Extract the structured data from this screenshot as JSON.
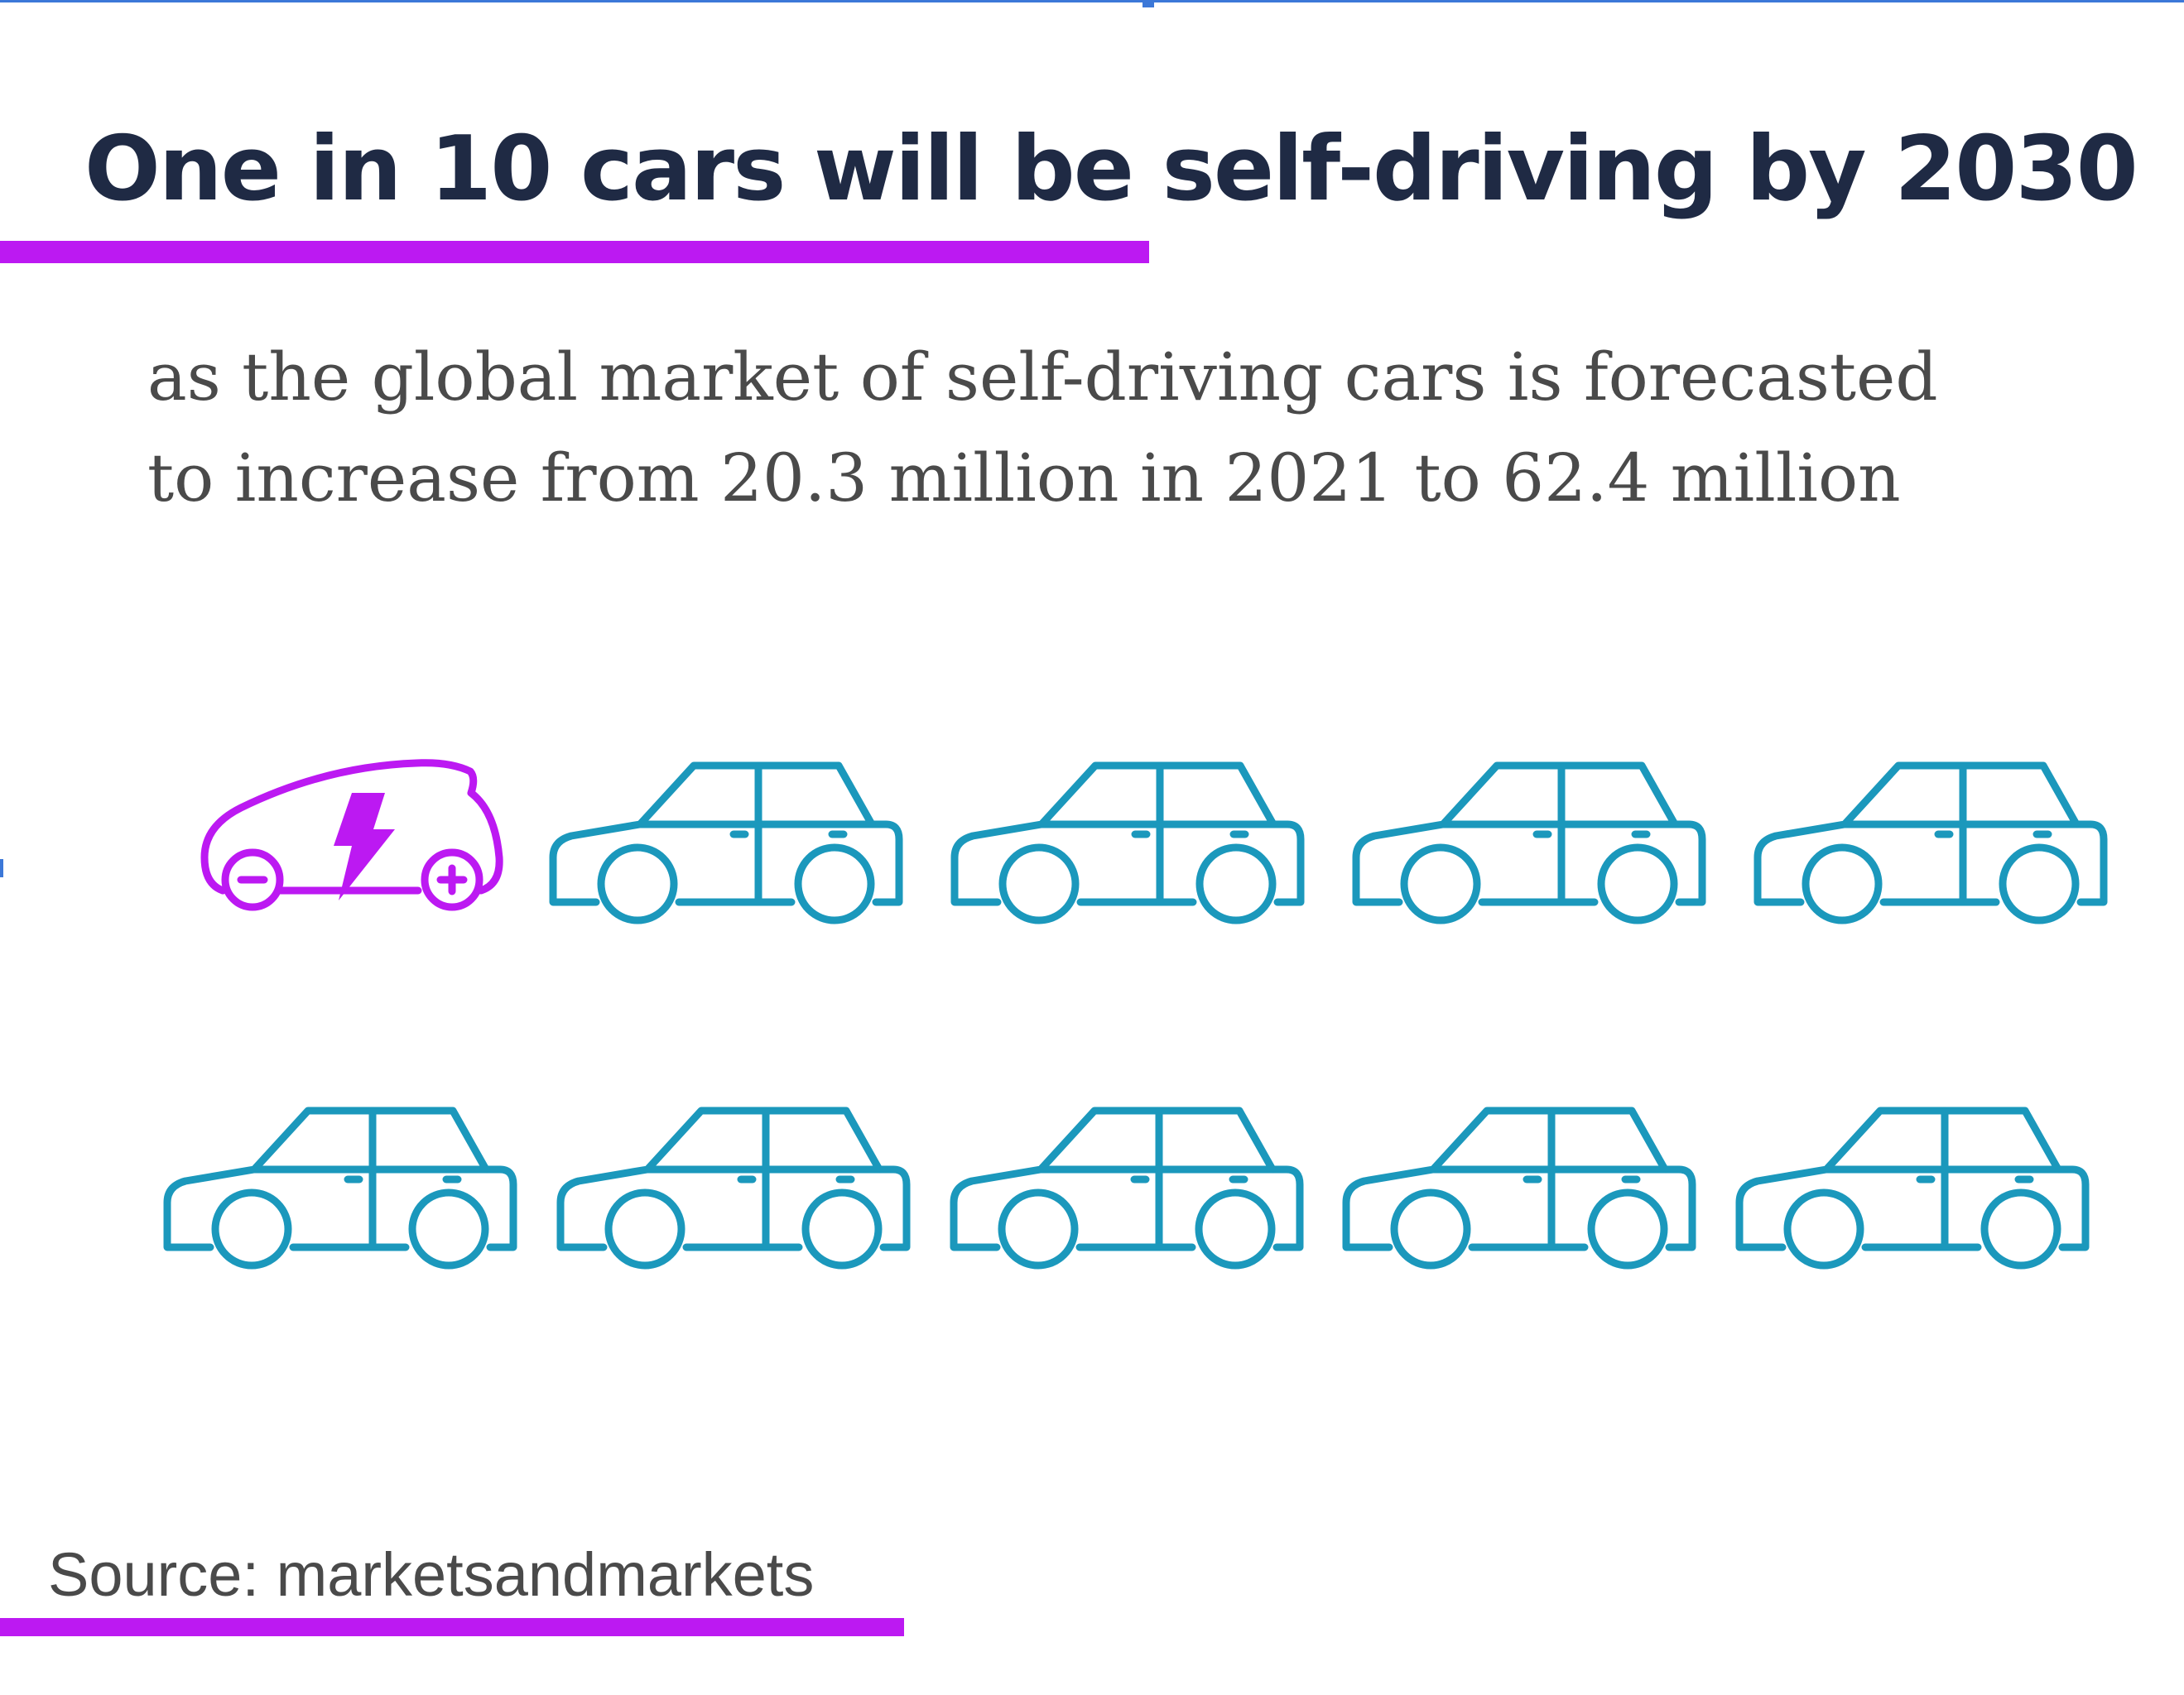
{
  "title": "One in 10 cars will be self-driving by 2030",
  "subtitle": "as the global market of self-driving cars is forecasted to increase from 20.3 million in 2021 to 62.4 million",
  "source": "Source: marketsandmarkets",
  "colors": {
    "accent": "#bc19f2",
    "title_text": "#1f2a44",
    "body_text": "#4a4a4a",
    "car_regular": "#1b98bc",
    "car_self_driving": "#bc19f2"
  },
  "chart_data": {
    "type": "pictogram",
    "units": [
      {
        "kind": "self-driving",
        "icon": "electric-car-icon"
      },
      {
        "kind": "regular",
        "icon": "car-icon"
      },
      {
        "kind": "regular",
        "icon": "car-icon"
      },
      {
        "kind": "regular",
        "icon": "car-icon"
      },
      {
        "kind": "regular",
        "icon": "car-icon"
      },
      {
        "kind": "regular",
        "icon": "car-icon"
      },
      {
        "kind": "regular",
        "icon": "car-icon"
      },
      {
        "kind": "regular",
        "icon": "car-icon"
      },
      {
        "kind": "regular",
        "icon": "car-icon"
      },
      {
        "kind": "regular",
        "icon": "car-icon"
      }
    ],
    "highlighted_count": 1,
    "total": 10
  }
}
